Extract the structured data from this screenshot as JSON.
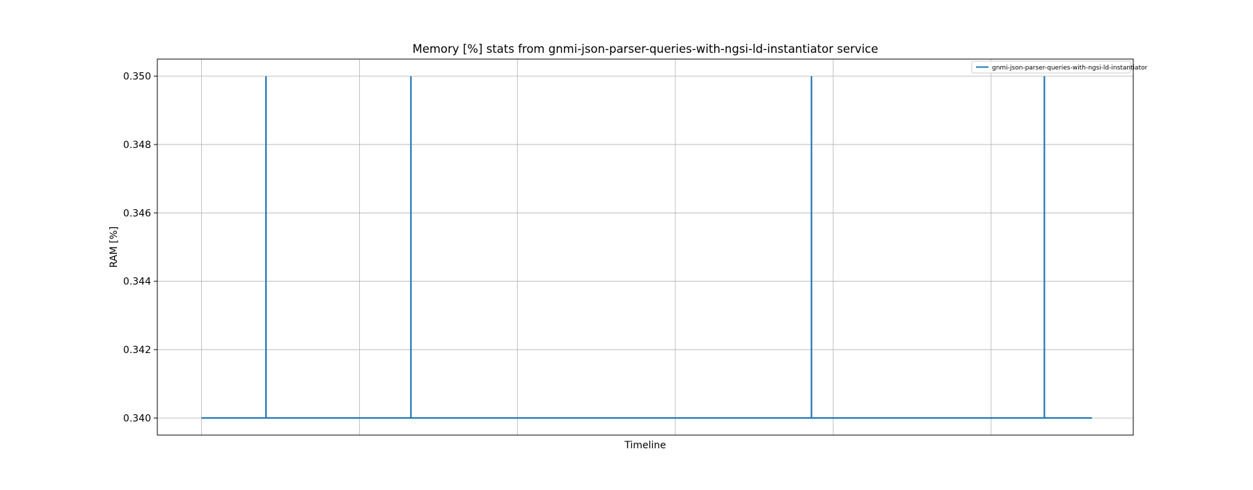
{
  "chart_data": {
    "type": "line",
    "title": "Memory [%] stats from gnmi-json-parser-queries-with-ngsi-ld-instantiator service",
    "xlabel": "Timeline",
    "ylabel": "RAM [%]",
    "x_tick_labels": [],
    "yticks": [
      0.34,
      0.342,
      0.344,
      0.346,
      0.348,
      0.35
    ],
    "ytick_labels": [
      "0.340",
      "0.342",
      "0.344",
      "0.346",
      "0.348",
      "0.350"
    ],
    "ylim": [
      0.3395,
      0.3505
    ],
    "xlim": [
      -2.8,
      59
    ],
    "grid": true,
    "legend_position": "top-right",
    "series": [
      {
        "name": "gnmi-json-parser-queries-with-ngsi-ld-instantiator",
        "color": "#1f77b4",
        "x": [
          0,
          4.08,
          4.08,
          4.08,
          13.26,
          13.26,
          13.26,
          38.62,
          38.62,
          38.62,
          53.37,
          53.37,
          53.37,
          56.38
        ],
        "y": [
          0.34,
          0.34,
          0.35,
          0.34,
          0.34,
          0.35,
          0.34,
          0.34,
          0.35,
          0.34,
          0.34,
          0.35,
          0.34,
          0.34
        ]
      }
    ]
  }
}
